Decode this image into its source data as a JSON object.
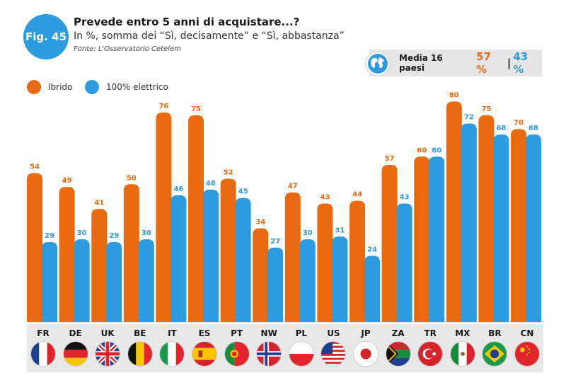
{
  "header": {
    "badge": "Fig. 45",
    "title": "Prevede entro 5 anni di acquistare...?",
    "subtitle": "In %, somma dei “Sì, decisamente” e “Sì, abbastanza”",
    "source": "Fonte: L'Osservatorio Cetelem"
  },
  "average": {
    "label": "Media 16 paesi",
    "hybrid": "57 %",
    "separator": "|",
    "electric": "43 %"
  },
  "legend": [
    {
      "label": "Ibrido",
      "color": "#ea6a12"
    },
    {
      "label": "100% elettrico",
      "color": "#2c9be0"
    }
  ],
  "chart_data": {
    "type": "bar",
    "categories": [
      "FR",
      "DE",
      "UK",
      "BE",
      "IT",
      "ES",
      "PT",
      "NW",
      "PL",
      "US",
      "JP",
      "ZA",
      "TR",
      "MX",
      "BR",
      "CN"
    ],
    "series": [
      {
        "name": "Ibrido",
        "color": "#ea6a12",
        "values": [
          54,
          49,
          41,
          50,
          76,
          75,
          52,
          34,
          47,
          43,
          44,
          57,
          60,
          80,
          75,
          70
        ]
      },
      {
        "name": "100% elettrico",
        "color": "#2c9be0",
        "values": [
          29,
          30,
          29,
          30,
          46,
          48,
          45,
          27,
          30,
          31,
          24,
          43,
          60,
          72,
          68,
          68
        ]
      }
    ],
    "ylim": [
      0,
      100
    ],
    "grid": false,
    "legend_position": "top-left",
    "data_labels": true
  },
  "flags": [
    {
      "code": "FR",
      "icon": "france-flag-icon"
    },
    {
      "code": "DE",
      "icon": "germany-flag-icon"
    },
    {
      "code": "UK",
      "icon": "uk-flag-icon"
    },
    {
      "code": "BE",
      "icon": "belgium-flag-icon"
    },
    {
      "code": "IT",
      "icon": "italy-flag-icon"
    },
    {
      "code": "ES",
      "icon": "spain-flag-icon"
    },
    {
      "code": "PT",
      "icon": "portugal-flag-icon"
    },
    {
      "code": "NW",
      "icon": "norway-flag-icon"
    },
    {
      "code": "PL",
      "icon": "poland-flag-icon"
    },
    {
      "code": "US",
      "icon": "usa-flag-icon"
    },
    {
      "code": "JP",
      "icon": "japan-flag-icon"
    },
    {
      "code": "ZA",
      "icon": "south-africa-flag-icon"
    },
    {
      "code": "TR",
      "icon": "turkey-flag-icon"
    },
    {
      "code": "MX",
      "icon": "mexico-flag-icon"
    },
    {
      "code": "BR",
      "icon": "brazil-flag-icon"
    },
    {
      "code": "CN",
      "icon": "china-flag-icon"
    }
  ]
}
